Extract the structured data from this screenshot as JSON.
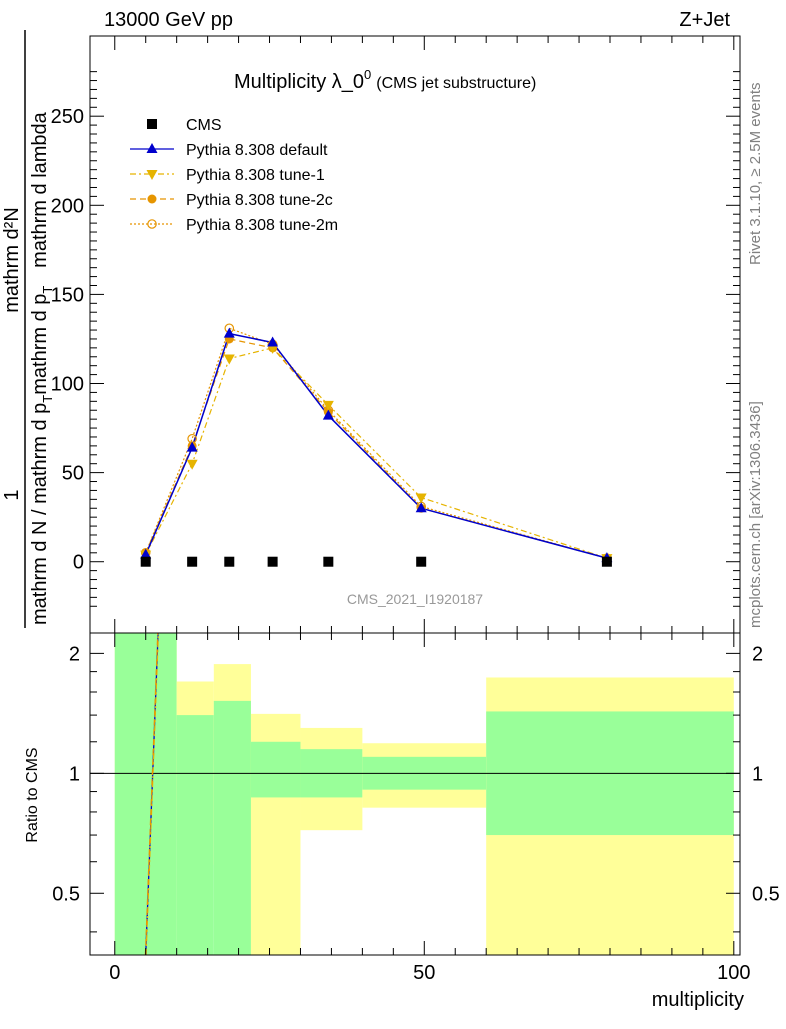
{
  "header": {
    "left": "13000 GeV pp",
    "right": "Z+Jet"
  },
  "side_labels": {
    "rivet": "Rivet 3.1.10, ≥ 2.5M events",
    "mcplots": "mcplots.cern.ch [arXiv:1306.3436]"
  },
  "chart_data": [
    {
      "type": "line",
      "title_main": "Multiplicity λ_0",
      "title_sup": "0",
      "title_sub": "(CMS jet substructure)",
      "watermark": "CMS_2021_I1920187",
      "ylabel_num": "1",
      "ylabel_den": "mathrm d N / mathrm d p",
      "ylabel_den_sub": "T",
      "ylabel_den_tail": "mathrm d p",
      "ylabel_den_tail_sub": "T",
      "ylabel_num_full": "mathrm d²N",
      "ylabel_num_den": "mathrm d lambda",
      "xlim": [
        -4,
        101
      ],
      "ylim": [
        -40,
        295
      ],
      "yticks": [
        0,
        50,
        100,
        150,
        200,
        250
      ],
      "legend_position": "top-left",
      "legend": [
        {
          "name": "CMS",
          "style": "data"
        },
        {
          "name": "Pythia 8.308 default",
          "style": "default"
        },
        {
          "name": "Pythia 8.308 tune-1",
          "style": "tune1"
        },
        {
          "name": "Pythia 8.308 tune-2c",
          "style": "tune2c"
        },
        {
          "name": "Pythia 8.308 tune-2m",
          "style": "tune2m"
        }
      ],
      "series": [
        {
          "name": "CMS",
          "style": "data",
          "x": [
            5,
            12.5,
            18.5,
            25.5,
            34.5,
            49.5,
            79.5
          ],
          "y": [
            0,
            0,
            0,
            0,
            0,
            0,
            0
          ]
        },
        {
          "name": "Pythia 8.308 default",
          "style": "default",
          "x": [
            5,
            12.5,
            18.5,
            25.5,
            34.5,
            49.5,
            79.5
          ],
          "y": [
            4,
            64,
            128,
            123,
            82,
            30,
            2
          ]
        },
        {
          "name": "Pythia 8.308 tune-1",
          "style": "tune1",
          "x": [
            5,
            12.5,
            18.5,
            25.5,
            34.5,
            49.5,
            79.5
          ],
          "y": [
            4,
            55,
            114,
            120,
            88,
            36,
            2
          ]
        },
        {
          "name": "Pythia 8.308 tune-2c",
          "style": "tune2c",
          "x": [
            5,
            12.5,
            18.5,
            25.5,
            34.5,
            49.5,
            79.5
          ],
          "y": [
            5,
            65,
            125,
            120,
            84,
            30,
            2
          ]
        },
        {
          "name": "Pythia 8.308 tune-2m",
          "style": "tune2m",
          "x": [
            5,
            12.5,
            18.5,
            25.5,
            34.5,
            49.5,
            79.5
          ],
          "y": [
            5,
            69,
            131,
            122,
            85,
            31,
            2
          ]
        }
      ]
    },
    {
      "type": "area",
      "ylabel": "Ratio to CMS",
      "xlabel": "multiplicity",
      "xlim": [
        -4,
        101
      ],
      "ylim": [
        0.35,
        2.25
      ],
      "xticks": [
        0,
        50,
        100
      ],
      "yticks": [
        0.5,
        1,
        2
      ],
      "bins": [
        {
          "x0": 0,
          "x1": 10,
          "inner": [
            0.0,
            2.3
          ],
          "outer": [
            0.0,
            2.3
          ]
        },
        {
          "x0": 10,
          "x1": 16,
          "inner": [
            0.0,
            1.4
          ],
          "outer": [
            0.72,
            1.7
          ]
        },
        {
          "x0": 16,
          "x1": 22,
          "inner": [
            0.0,
            1.52
          ],
          "outer": [
            0.59,
            1.88
          ]
        },
        {
          "x0": 22,
          "x1": 30,
          "inner": [
            0.87,
            1.2
          ],
          "outer": [
            0.0,
            1.41
          ]
        },
        {
          "x0": 30,
          "x1": 40,
          "inner": [
            0.87,
            1.15
          ],
          "outer": [
            0.72,
            1.3
          ]
        },
        {
          "x0": 40,
          "x1": 60,
          "inner": [
            0.91,
            1.1
          ],
          "outer": [
            0.82,
            1.19
          ]
        },
        {
          "x0": 60,
          "x1": 100,
          "inner": [
            0.7,
            1.43
          ],
          "outer": [
            0.0,
            1.74
          ]
        }
      ],
      "series_lines": [
        {
          "name": "Pythia 8.308 default",
          "style": "default",
          "x": [
            5,
            7
          ],
          "y": [
            0.35,
            2.25
          ]
        },
        {
          "name": "Pythia 8.308 tune-1",
          "style": "tune1",
          "x": [
            5.05,
            7.05
          ],
          "y": [
            0.35,
            2.25
          ]
        },
        {
          "name": "Pythia 8.308 tune-2c",
          "style": "tune2c",
          "x": [
            4.95,
            6.95
          ],
          "y": [
            0.35,
            2.25
          ]
        }
      ]
    }
  ],
  "colors": {
    "default": "#0000cc",
    "tune1": "#e6b400",
    "tune2c": "#e69500",
    "tune2m": "#e69500",
    "band_inner": "#99ff99",
    "band_outer": "#ffff99",
    "data": "#000000",
    "side_text": "#808080"
  }
}
